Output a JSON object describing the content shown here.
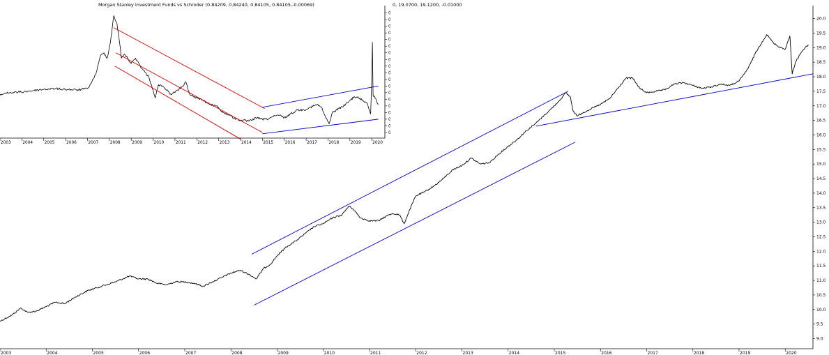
{
  "chart_data": [
    {
      "id": "main",
      "type": "line",
      "title": "",
      "readout": "0, 19.0700, 19.1200, -0.01000",
      "xlabel": "",
      "ylabel": "",
      "xlim": [
        2003.0,
        2020.6
      ],
      "ylim": [
        8.7,
        20.35
      ],
      "x_ticks": [
        "2003",
        "2004",
        "2005",
        "2006",
        "2007",
        "2008",
        "2009",
        "2010",
        "2011",
        "2012",
        "2013",
        "2014",
        "2015",
        "2016",
        "2017",
        "2018",
        "2019",
        "2020"
      ],
      "y_ticks": [
        9.0,
        9.5,
        10.0,
        10.5,
        11.0,
        11.5,
        12.0,
        12.5,
        13.0,
        13.5,
        14.0,
        14.5,
        15.0,
        15.5,
        16.0,
        16.5,
        17.0,
        17.5,
        18.0,
        18.5,
        19.0,
        19.5,
        20.0
      ],
      "grid": false,
      "series": [
        {
          "color": "#000000",
          "points": [
            [
              2003.0,
              9.6
            ],
            [
              2003.25,
              9.8
            ],
            [
              2003.45,
              10.05
            ],
            [
              2003.6,
              9.9
            ],
            [
              2003.8,
              9.95
            ],
            [
              2004.0,
              10.1
            ],
            [
              2004.2,
              10.25
            ],
            [
              2004.4,
              10.2
            ],
            [
              2004.6,
              10.4
            ],
            [
              2004.9,
              10.65
            ],
            [
              2005.2,
              10.8
            ],
            [
              2005.5,
              10.95
            ],
            [
              2005.8,
              11.15
            ],
            [
              2006.0,
              11.05
            ],
            [
              2006.2,
              11.05
            ],
            [
              2006.4,
              10.9
            ],
            [
              2006.6,
              10.85
            ],
            [
              2006.8,
              10.95
            ],
            [
              2007.0,
              10.95
            ],
            [
              2007.2,
              10.9
            ],
            [
              2007.4,
              10.8
            ],
            [
              2007.6,
              10.95
            ],
            [
              2007.8,
              11.1
            ],
            [
              2008.0,
              11.25
            ],
            [
              2008.2,
              11.35
            ],
            [
              2008.4,
              11.2
            ],
            [
              2008.55,
              11.05
            ],
            [
              2008.7,
              11.4
            ],
            [
              2008.85,
              11.55
            ],
            [
              2009.0,
              11.85
            ],
            [
              2009.2,
              12.15
            ],
            [
              2009.4,
              12.35
            ],
            [
              2009.6,
              12.6
            ],
            [
              2009.8,
              12.85
            ],
            [
              2010.0,
              12.95
            ],
            [
              2010.2,
              13.15
            ],
            [
              2010.4,
              13.25
            ],
            [
              2010.55,
              13.55
            ],
            [
              2010.65,
              13.45
            ],
            [
              2010.8,
              13.15
            ],
            [
              2011.0,
              13.05
            ],
            [
              2011.2,
              13.05
            ],
            [
              2011.35,
              13.2
            ],
            [
              2011.5,
              13.3
            ],
            [
              2011.65,
              13.25
            ],
            [
              2011.75,
              12.95
            ],
            [
              2011.85,
              13.35
            ],
            [
              2012.0,
              13.9
            ],
            [
              2012.2,
              14.05
            ],
            [
              2012.4,
              14.25
            ],
            [
              2012.6,
              14.5
            ],
            [
              2012.8,
              14.8
            ],
            [
              2013.0,
              14.95
            ],
            [
              2013.2,
              15.2
            ],
            [
              2013.4,
              15.0
            ],
            [
              2013.6,
              15.05
            ],
            [
              2013.8,
              15.35
            ],
            [
              2014.0,
              15.6
            ],
            [
              2014.2,
              15.85
            ],
            [
              2014.4,
              16.15
            ],
            [
              2014.6,
              16.4
            ],
            [
              2014.8,
              16.7
            ],
            [
              2015.0,
              17.0
            ],
            [
              2015.15,
              17.25
            ],
            [
              2015.25,
              17.45
            ],
            [
              2015.35,
              17.3
            ],
            [
              2015.4,
              16.85
            ],
            [
              2015.5,
              16.65
            ],
            [
              2015.6,
              16.75
            ],
            [
              2015.8,
              16.9
            ],
            [
              2016.0,
              17.05
            ],
            [
              2016.2,
              17.25
            ],
            [
              2016.4,
              17.65
            ],
            [
              2016.55,
              17.95
            ],
            [
              2016.7,
              17.95
            ],
            [
              2016.85,
              17.6
            ],
            [
              2017.0,
              17.45
            ],
            [
              2017.2,
              17.5
            ],
            [
              2017.4,
              17.55
            ],
            [
              2017.6,
              17.75
            ],
            [
              2017.8,
              17.8
            ],
            [
              2018.0,
              17.7
            ],
            [
              2018.2,
              17.6
            ],
            [
              2018.4,
              17.65
            ],
            [
              2018.6,
              17.75
            ],
            [
              2018.8,
              17.7
            ],
            [
              2019.0,
              17.85
            ],
            [
              2019.2,
              18.3
            ],
            [
              2019.35,
              18.8
            ],
            [
              2019.5,
              19.2
            ],
            [
              2019.6,
              19.45
            ],
            [
              2019.75,
              19.15
            ],
            [
              2019.9,
              19.0
            ],
            [
              2020.0,
              18.95
            ],
            [
              2020.1,
              19.4
            ],
            [
              2020.15,
              18.1
            ],
            [
              2020.22,
              18.5
            ],
            [
              2020.35,
              18.85
            ],
            [
              2020.5,
              19.1
            ]
          ]
        }
      ],
      "trendlines": [
        {
          "color": "#0000c0",
          "from": [
            2008.45,
            11.9
          ],
          "to": [
            2015.3,
            17.5
          ]
        },
        {
          "color": "#0000c0",
          "from": [
            2008.5,
            10.15
          ],
          "to": [
            2015.45,
            15.75
          ]
        },
        {
          "color": "#0000c0",
          "from": [
            2014.6,
            16.3
          ],
          "to": [
            2020.6,
            18.1
          ]
        }
      ]
    },
    {
      "id": "inset",
      "type": "line",
      "title": "Morgan Stanley Investment Funds  vs Schroder  (0.84209, 0.84240, 0.84105, 0.84105,-0.00069)",
      "xlabel": "",
      "ylabel": "",
      "xlim": [
        2003.0,
        2020.6
      ],
      "ylim": [
        0.8168,
        0.9135
      ],
      "x_ticks": [
        "2003",
        "2004",
        "2005",
        "2006",
        "2007",
        "2008",
        "2009",
        "2010",
        "2011",
        "2012",
        "2013",
        "2014",
        "2015",
        "2016",
        "2017",
        "2018",
        "2019",
        "2020"
      ],
      "y_ticks": [
        0.82,
        0.825,
        0.83,
        0.835,
        0.84,
        0.845,
        0.85,
        0.855,
        0.86,
        0.865,
        0.87,
        0.875,
        0.88,
        0.885,
        0.89,
        0.895,
        0.9,
        0.905,
        0.91
      ],
      "grid": false,
      "series": [
        {
          "color": "#000000",
          "points": [
            [
              2003.0,
              0.848
            ],
            [
              2003.2,
              0.8495
            ],
            [
              2003.5,
              0.85
            ],
            [
              2004.0,
              0.8505
            ],
            [
              2004.5,
              0.8515
            ],
            [
              2005.0,
              0.8525
            ],
            [
              2005.5,
              0.853
            ],
            [
              2006.0,
              0.8525
            ],
            [
              2006.5,
              0.852
            ],
            [
              2007.0,
              0.853
            ],
            [
              2007.2,
              0.858
            ],
            [
              2007.4,
              0.865
            ],
            [
              2007.6,
              0.878
            ],
            [
              2007.75,
              0.88
            ],
            [
              2007.9,
              0.876
            ],
            [
              2008.05,
              0.888
            ],
            [
              2008.2,
              0.908
            ],
            [
              2008.35,
              0.902
            ],
            [
              2008.45,
              0.89
            ],
            [
              2008.55,
              0.876
            ],
            [
              2008.7,
              0.879
            ],
            [
              2009.0,
              0.872
            ],
            [
              2009.2,
              0.876
            ],
            [
              2009.5,
              0.868
            ],
            [
              2009.8,
              0.862
            ],
            [
              2010.0,
              0.852
            ],
            [
              2010.1,
              0.846
            ],
            [
              2010.25,
              0.856
            ],
            [
              2010.5,
              0.854
            ],
            [
              2010.8,
              0.849
            ],
            [
              2011.0,
              0.85
            ],
            [
              2011.3,
              0.854
            ],
            [
              2011.5,
              0.858
            ],
            [
              2011.7,
              0.848
            ],
            [
              2012.0,
              0.846
            ],
            [
              2012.3,
              0.844
            ],
            [
              2012.6,
              0.841
            ],
            [
              2012.9,
              0.84
            ],
            [
              2013.2,
              0.835
            ],
            [
              2013.5,
              0.833
            ],
            [
              2013.8,
              0.83
            ],
            [
              2014.1,
              0.829
            ],
            [
              2014.4,
              0.8285
            ],
            [
              2014.7,
              0.831
            ],
            [
              2015.0,
              0.83
            ],
            [
              2015.2,
              0.83
            ],
            [
              2015.5,
              0.832
            ],
            [
              2015.8,
              0.833
            ],
            [
              2016.0,
              0.831
            ],
            [
              2016.3,
              0.834
            ],
            [
              2016.6,
              0.837
            ],
            [
              2016.9,
              0.837
            ],
            [
              2017.2,
              0.839
            ],
            [
              2017.5,
              0.841
            ],
            [
              2017.7,
              0.839
            ],
            [
              2017.9,
              0.831
            ],
            [
              2018.05,
              0.8265
            ],
            [
              2018.2,
              0.835
            ],
            [
              2018.5,
              0.838
            ],
            [
              2018.8,
              0.841
            ],
            [
              2019.0,
              0.844
            ],
            [
              2019.2,
              0.847
            ],
            [
              2019.4,
              0.846
            ],
            [
              2019.6,
              0.844
            ],
            [
              2019.8,
              0.842
            ],
            [
              2019.95,
              0.834
            ],
            [
              2020.0,
              0.86
            ],
            [
              2020.03,
              0.888
            ],
            [
              2020.06,
              0.848
            ],
            [
              2020.15,
              0.846
            ],
            [
              2020.3,
              0.841
            ]
          ]
        }
      ],
      "trendlines": [
        {
          "color": "#cc0000",
          "from": [
            2008.2,
            0.899
          ],
          "to": [
            2015.1,
            0.838
          ]
        },
        {
          "color": "#cc0000",
          "from": [
            2008.3,
            0.88
          ],
          "to": [
            2015.0,
            0.82
          ]
        },
        {
          "color": "#cc0000",
          "from": [
            2008.25,
            0.87
          ],
          "to": [
            2014.0,
            0.815
          ]
        },
        {
          "color": "#0000c0",
          "from": [
            2015.0,
            0.839
          ],
          "to": [
            2020.3,
            0.855
          ]
        },
        {
          "color": "#0000c0",
          "from": [
            2015.0,
            0.819
          ],
          "to": [
            2020.3,
            0.83
          ]
        }
      ]
    }
  ]
}
